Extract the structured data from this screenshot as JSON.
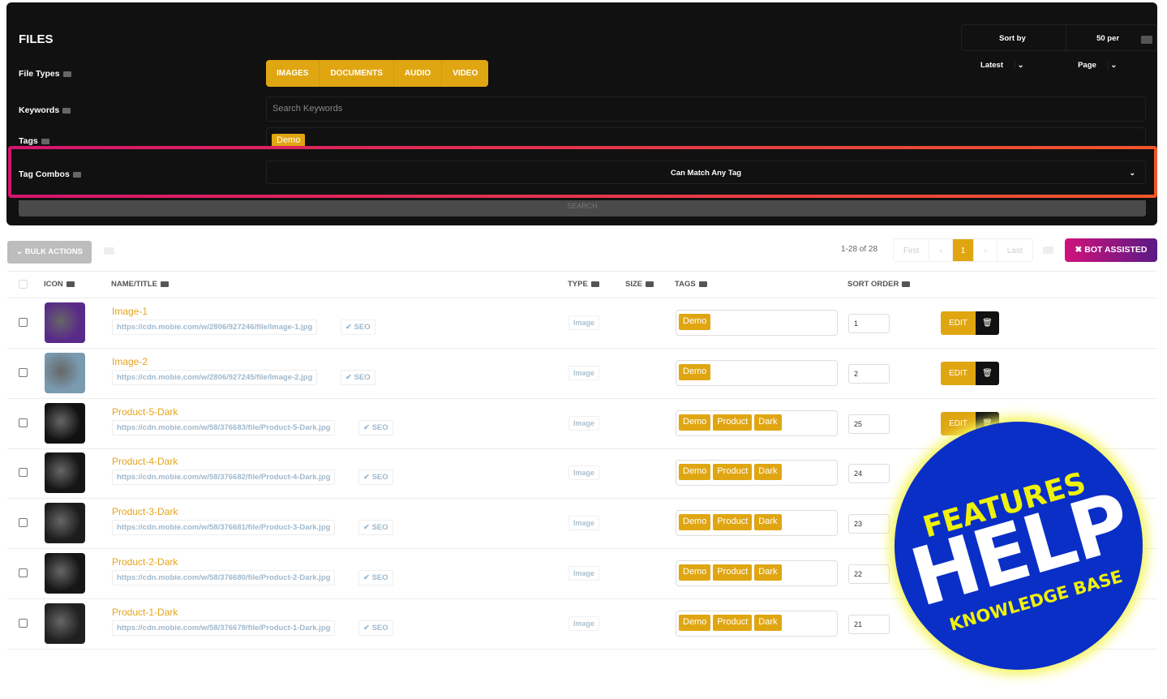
{
  "header": {
    "title": "FILES",
    "sort": "Sort by Latest",
    "per_page": "50 per Page"
  },
  "filters": {
    "file_types_label": "File Types",
    "file_types": [
      "IMAGES",
      "DOCUMENTS",
      "AUDIO",
      "VIDEO"
    ],
    "keywords_label": "Keywords",
    "keywords_placeholder": "Search Keywords",
    "tags_label": "Tags",
    "tags": [
      "Demo"
    ],
    "tag_combos_label": "Tag Combos",
    "tag_combos_value": "Can Match Any Tag",
    "search_label": "SEARCH"
  },
  "toolbar": {
    "bulk_actions": "BULK ACTIONS",
    "count": "1-28 of 28",
    "pager": {
      "first": "First",
      "prev": "‹",
      "current": "1",
      "next": "›",
      "last": "Last"
    },
    "bot_assisted": "✖ BOT ASSISTED"
  },
  "columns": {
    "icon": "ICON",
    "name": "NAME/TITLE",
    "type": "TYPE",
    "size": "SIZE",
    "tags": "TAGS",
    "sort_order": "SORT ORDER"
  },
  "rows": [
    {
      "name": "Image-1",
      "url": "https://cdn.mobie.com/w/2806/927246/file/Image-1.jpg",
      "seo": "✔ SEO",
      "type": "Image",
      "tags": [
        "Demo"
      ],
      "sort": "1",
      "edit": "EDIT",
      "thumb": "#5a2a8a"
    },
    {
      "name": "Image-2",
      "url": "https://cdn.mobie.com/w/2806/927245/file/Image-2.jpg",
      "seo": "✔ SEO",
      "type": "Image",
      "tags": [
        "Demo"
      ],
      "sort": "2",
      "edit": "EDIT",
      "thumb": "#7a9ab0"
    },
    {
      "name": "Product-5-Dark",
      "url": "https://cdn.mobie.com/w/58/376683/file/Product-5-Dark.jpg",
      "seo": "✔ SEO",
      "type": "Image",
      "tags": [
        "Demo",
        "Product",
        "Dark"
      ],
      "sort": "25",
      "edit": "EDIT",
      "thumb": "#111"
    },
    {
      "name": "Product-4-Dark",
      "url": "https://cdn.mobie.com/w/58/376682/file/Product-4-Dark.jpg",
      "seo": "✔ SEO",
      "type": "Image",
      "tags": [
        "Demo",
        "Product",
        "Dark"
      ],
      "sort": "24",
      "thumb": "#151515"
    },
    {
      "name": "Product-3-Dark",
      "url": "https://cdn.mobie.com/w/58/376681/file/Product-3-Dark.jpg",
      "seo": "✔ SEO",
      "type": "Image",
      "tags": [
        "Demo",
        "Product",
        "Dark"
      ],
      "sort": "23",
      "thumb": "#1c1c1c"
    },
    {
      "name": "Product-2-Dark",
      "url": "https://cdn.mobie.com/w/58/376680/file/Product-2-Dark.jpg",
      "seo": "✔ SEO",
      "type": "Image",
      "tags": [
        "Demo",
        "Product",
        "Dark"
      ],
      "sort": "22",
      "thumb": "#161616"
    },
    {
      "name": "Product-1-Dark",
      "url": "https://cdn.mobie.com/w/58/376679/file/Product-1-Dark.jpg",
      "seo": "✔ SEO",
      "type": "Image",
      "tags": [
        "Demo",
        "Product",
        "Dark"
      ],
      "sort": "21",
      "thumb": "#202020"
    }
  ],
  "badge": {
    "top": "FEATURES",
    "main": "HELP",
    "bottom": "KNOWLEDGE BASE"
  },
  "colors": {
    "accent": "#e0a612",
    "panel": "#111111",
    "badge_blue": "#0a2fc7",
    "badge_yellow": "#eef20a"
  }
}
